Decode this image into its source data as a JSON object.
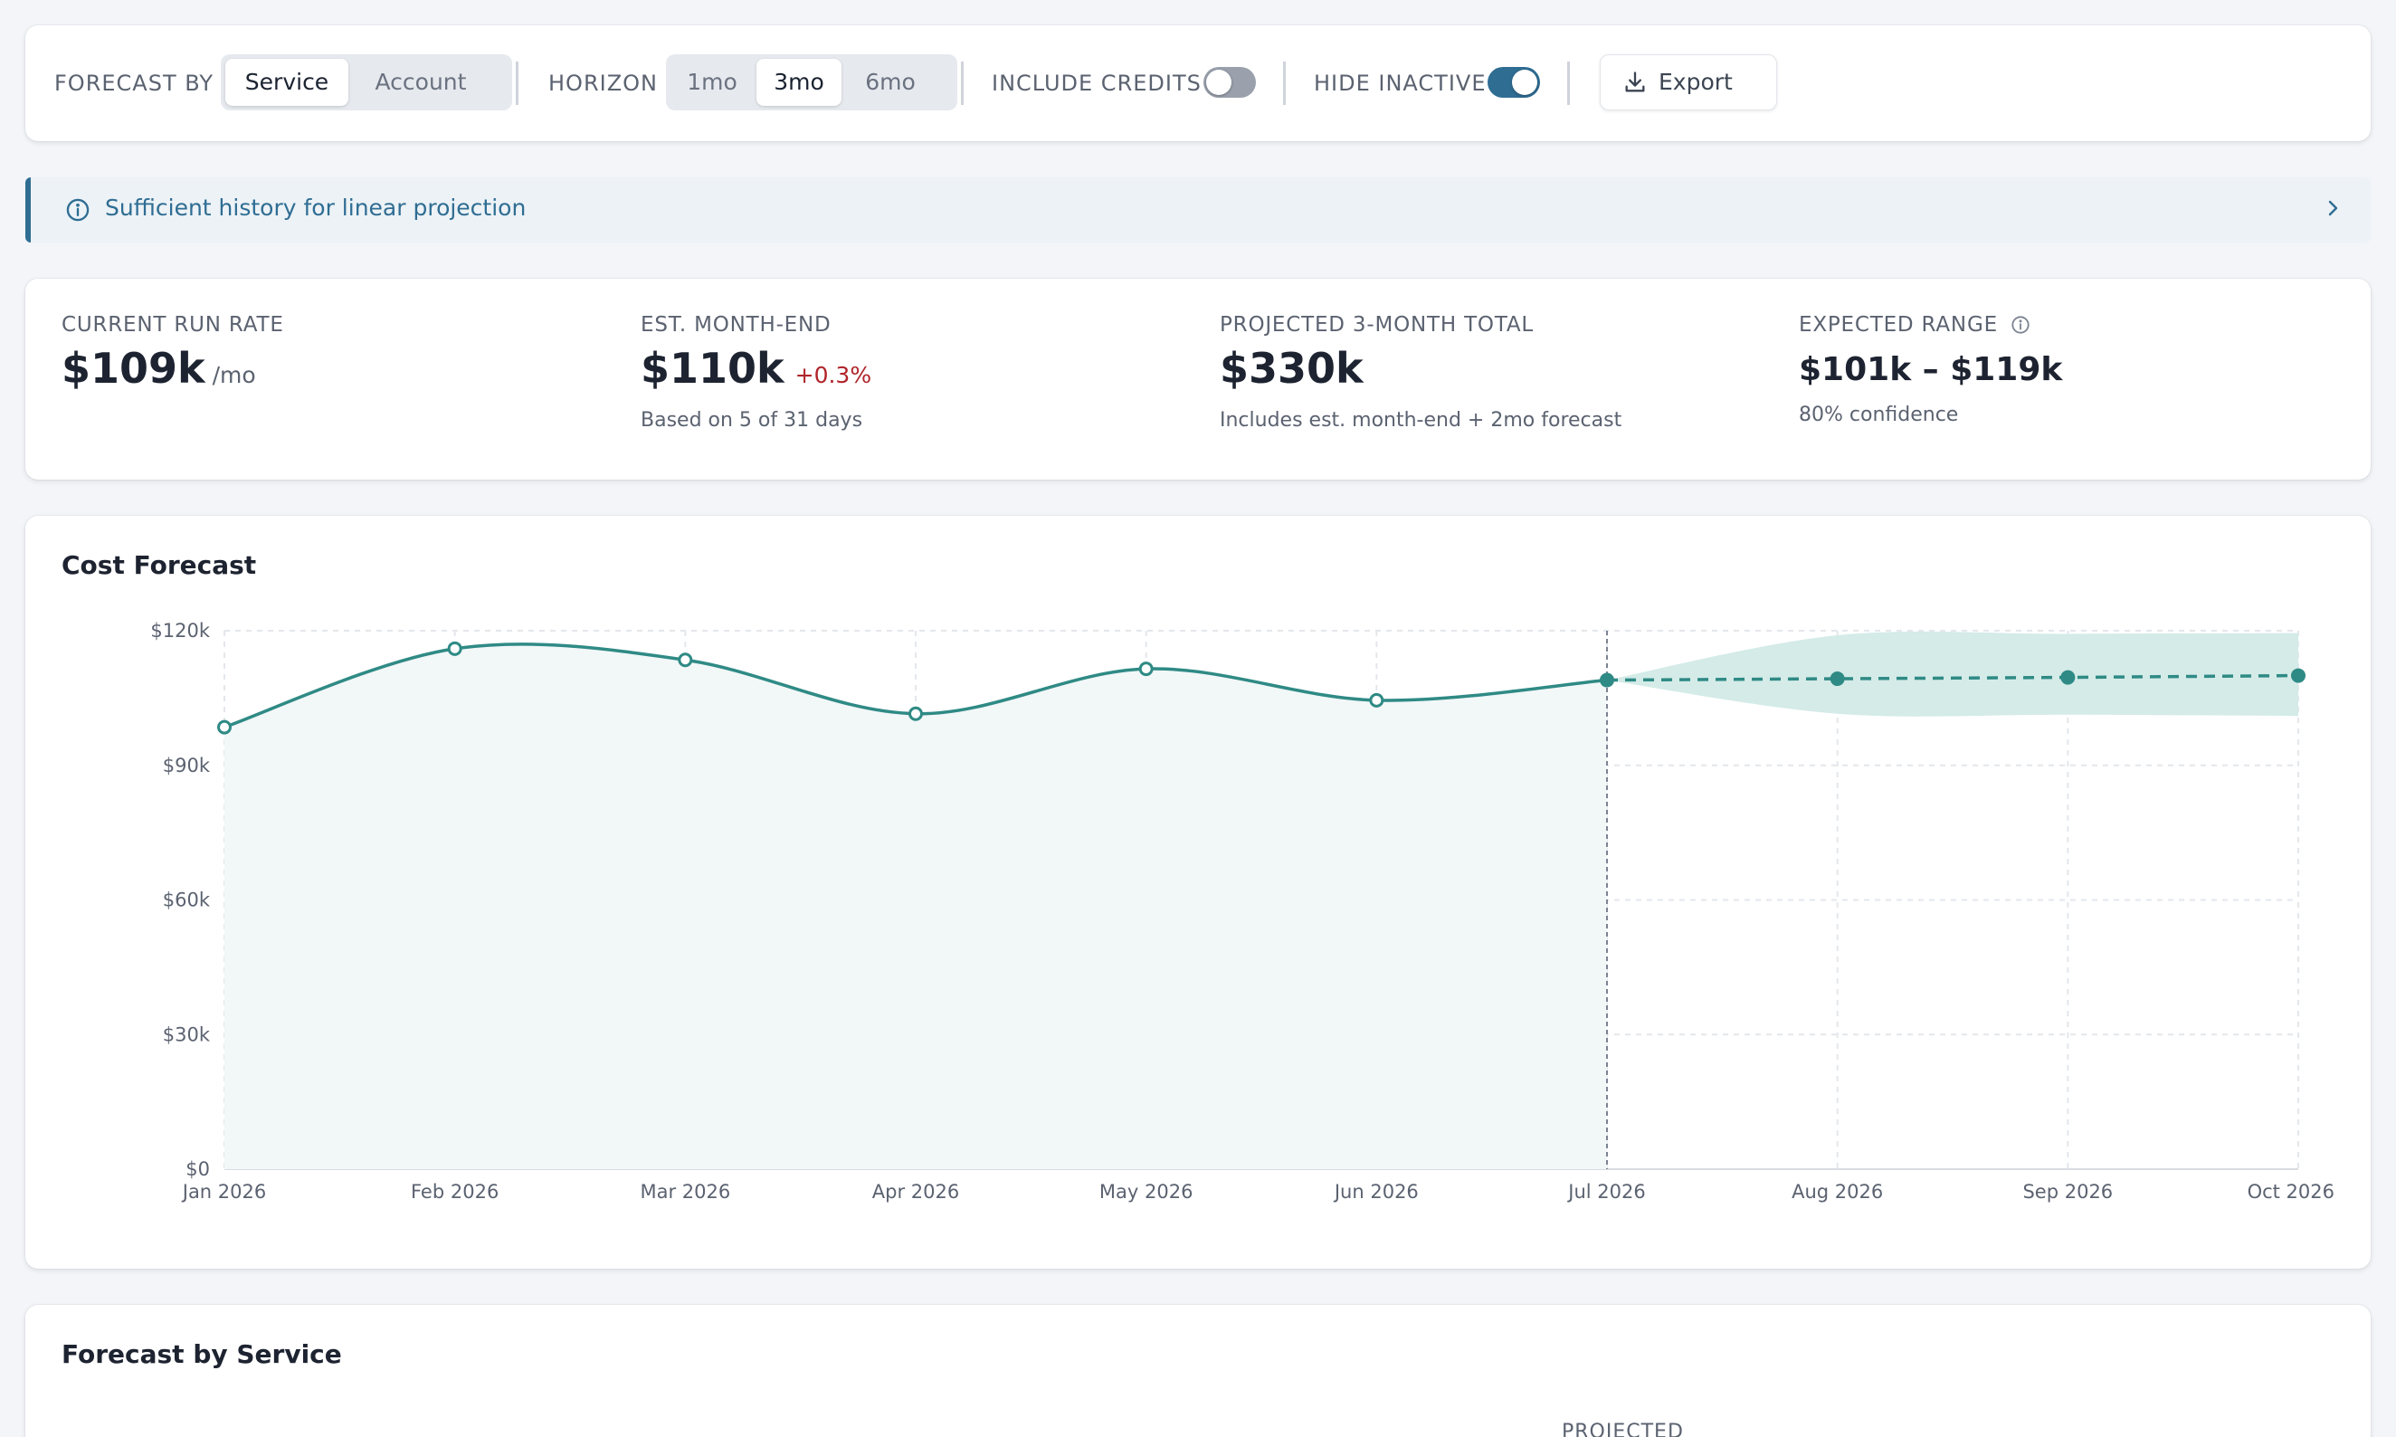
{
  "toolbar": {
    "forecast_by_label": "FORECAST BY",
    "forecast_options": [
      "Service",
      "Account"
    ],
    "forecast_selected": "Service",
    "horizon_label": "HORIZON",
    "horizon_options": [
      "1mo",
      "3mo",
      "6mo"
    ],
    "horizon_selected": "3mo",
    "include_credits_label": "INCLUDE CREDITS",
    "include_credits_on": false,
    "hide_inactive_label": "HIDE INACTIVE",
    "hide_inactive_on": true,
    "export_label": "Export",
    "icons": {
      "export": "download-icon"
    }
  },
  "banner": {
    "text": "Sufficient history for linear projection",
    "icons": {
      "leading": "info-icon",
      "trailing": "chevron-right-icon"
    }
  },
  "metrics": {
    "run_rate": {
      "label": "CURRENT RUN RATE",
      "value": "$109k",
      "unit": "/mo"
    },
    "month_end": {
      "label": "EST. MONTH-END",
      "value": "$110k",
      "delta": "+0.3%",
      "sub": "Based on 5 of 31 days"
    },
    "projected": {
      "label": "PROJECTED 3-MONTH TOTAL",
      "value": "$330k",
      "sub": "Includes est. month-end + 2mo forecast"
    },
    "range": {
      "label": "EXPECTED RANGE",
      "value": "$101k – $119k",
      "sub": "80% confidence",
      "icon": "info-icon"
    }
  },
  "chart_card": {
    "title": "Cost Forecast"
  },
  "chart_data": {
    "type": "line",
    "title": "Cost Forecast",
    "x": [
      "Jan 2026",
      "Feb 2026",
      "Mar 2026",
      "Apr 2026",
      "May 2026",
      "Jun 2026",
      "Jul 2026",
      "Aug 2026",
      "Sep 2026",
      "Oct 2026"
    ],
    "y_ticks": [
      0,
      30000,
      60000,
      90000,
      120000
    ],
    "y_tick_labels": [
      "$0",
      "$30k",
      "$60k",
      "$90k",
      "$120k"
    ],
    "ylim": [
      0,
      120000
    ],
    "grid": true,
    "series": [
      {
        "kind": "actual",
        "values": [
          98500,
          116000,
          113500,
          101500,
          111500,
          104500,
          109000,
          null,
          null,
          null
        ]
      },
      {
        "kind": "forecast",
        "values": [
          null,
          null,
          null,
          null,
          null,
          null,
          109000,
          109300,
          109600,
          110000
        ]
      }
    ],
    "band": {
      "lower": [
        null,
        null,
        null,
        null,
        null,
        null,
        109000,
        101500,
        101300,
        101000
      ],
      "upper": [
        null,
        null,
        null,
        null,
        null,
        null,
        109000,
        119000,
        119300,
        119500
      ]
    },
    "colors": {
      "line": "#2f8a85",
      "band": "#d4ebe8",
      "area": "#f2f7f8",
      "grid": "#e3e7ec",
      "divider": "#7c8391"
    }
  },
  "service_card": {
    "title": "Forecast by Service",
    "column_projected": "PROJECTED"
  }
}
